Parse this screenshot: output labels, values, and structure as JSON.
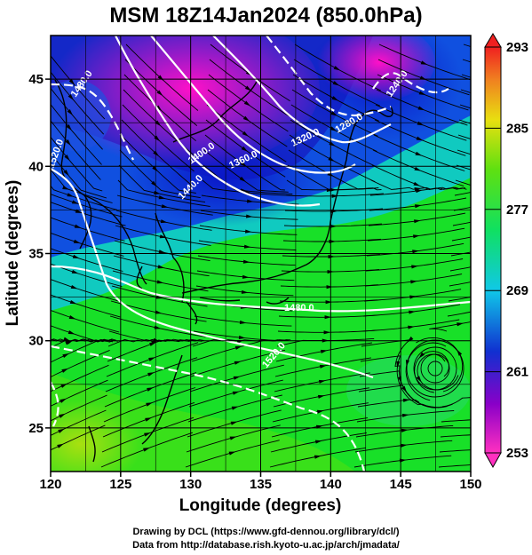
{
  "title": "MSM 18Z14Jan2024 (850.0hPa)",
  "axes": {
    "xlabel": "Longitude (degrees)",
    "ylabel": "Latitude  (degrees)",
    "xlim": [
      120,
      150
    ],
    "ylim": [
      22.5,
      47.5
    ],
    "xticks": [
      "120",
      "125",
      "130",
      "135",
      "140",
      "145",
      "150"
    ],
    "yticks": [
      "25",
      "30",
      "35",
      "40",
      "45"
    ],
    "grid": true
  },
  "colorbar": {
    "min": 253,
    "max": 293,
    "ticks": [
      "293",
      "285",
      "277",
      "269",
      "261",
      "253"
    ]
  },
  "contours": {
    "labels": [
      "1480.0",
      "1520.0",
      "1400.0",
      "1440.0",
      "1360.0",
      "1320.0",
      "1280.0",
      "1240.0",
      "1480.0",
      "1520.0"
    ]
  },
  "credit": {
    "line1": "Drawing by DCL (https://www.gfd-dennou.org/library/dcl/)",
    "line2": "Data from http://database.rish.kyoto-u.ac.jp/arch/jmadata/"
  },
  "colors": {
    "cold": "#8a00a8",
    "cool": "#1030c0",
    "mid": "#10d8c0",
    "warm": "#20e010",
    "hot": "#e0d010"
  }
}
